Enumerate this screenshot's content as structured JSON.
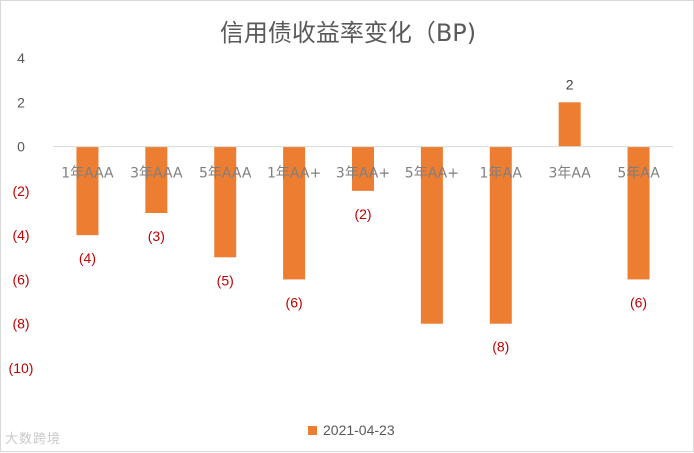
{
  "chart_data": {
    "type": "bar",
    "title": "信用债收益率变化（BP)",
    "categories": [
      "1年AAA",
      "3年AAA",
      "5年AAA",
      "1年AA+",
      "3年AA+",
      "5年AA+",
      "1年AA",
      "3年AA",
      "5年AA"
    ],
    "series": [
      {
        "name": "2021-04-23",
        "values": [
          -4,
          -3,
          -5,
          -6,
          -2,
          -8,
          -8,
          2,
          -6
        ]
      }
    ],
    "data_labels": [
      "(4)",
      "(3)",
      "(5)",
      "(6)",
      "(2)",
      "",
      "(8)",
      "2",
      "(6)"
    ],
    "yticks": [
      4,
      2,
      0,
      -2,
      -4,
      -6,
      -8,
      -10
    ],
    "ytick_labels": [
      "4",
      "2",
      "0",
      "(2)",
      "(4)",
      "(6)",
      "(8)",
      "(10)"
    ],
    "ylim": [
      -10,
      4
    ],
    "grid": false,
    "legend_position": "bottom",
    "colors": {
      "bar": "#ED7D31",
      "negative_label": "#C00000",
      "positive_label": "#404040",
      "axis_text": "#595959",
      "category_text": "#7F7F7F"
    }
  },
  "watermark": "大数跨境"
}
